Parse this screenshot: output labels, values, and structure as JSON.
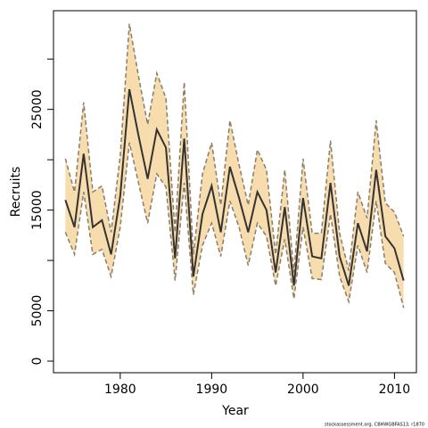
{
  "chart_data": {
    "type": "line-band",
    "x_label": "Year",
    "y_label": "Recruits",
    "footnote": "stockassessment.org, CBHWGBFAS13, r1870",
    "x": [
      1974,
      1975,
      1976,
      1977,
      1978,
      1979,
      1980,
      1981,
      1982,
      1983,
      1984,
      1985,
      1986,
      1987,
      1988,
      1989,
      1990,
      1991,
      1992,
      1993,
      1994,
      1995,
      1996,
      1997,
      1998,
      1999,
      2000,
      2001,
      2002,
      2003,
      2004,
      2005,
      2006,
      2007,
      2008,
      2009,
      2010,
      2011
    ],
    "values": [
      16000,
      13300,
      20600,
      13300,
      14000,
      10600,
      16400,
      27000,
      22400,
      18100,
      23000,
      21200,
      10200,
      22100,
      8400,
      14600,
      17400,
      12800,
      19300,
      16200,
      12800,
      16800,
      15000,
      8800,
      15300,
      7500,
      16200,
      10400,
      10200,
      17700,
      10400,
      7500,
      13700,
      10900,
      19000,
      12400,
      11200,
      8000
    ],
    "upper": [
      20100,
      16800,
      25700,
      16800,
      17400,
      12800,
      20400,
      33500,
      28300,
      23500,
      28600,
      26100,
      12800,
      27700,
      10600,
      18600,
      21700,
      15500,
      23900,
      19500,
      15500,
      21000,
      19000,
      10600,
      19000,
      8800,
      20100,
      12700,
      12700,
      21900,
      12700,
      9000,
      16800,
      14200,
      23900,
      15700,
      14800,
      12400
    ],
    "lower": [
      12800,
      10600,
      16800,
      10600,
      11100,
      8400,
      13300,
      21700,
      17700,
      13700,
      18600,
      17300,
      8000,
      17700,
      6600,
      11500,
      13700,
      10400,
      15900,
      13300,
      9500,
      13700,
      12400,
      7500,
      12100,
      6200,
      13300,
      8200,
      8100,
      14600,
      8400,
      5900,
      11500,
      8800,
      15900,
      9700,
      8800,
      5300
    ],
    "line_color": "#333333",
    "band_color": "#f7dcae",
    "band_edge_color": "#8a7d6b",
    "xlim": [
      1972.7,
      2012.4
    ],
    "ylim": [
      -1150,
      34800
    ],
    "xticks": [
      1980,
      1990,
      2000,
      2010
    ],
    "yticks": [
      0,
      5000,
      {
        "value": 10000,
        "label": null
      },
      15000,
      {
        "value": 20000,
        "label": null
      },
      25000,
      {
        "value": 30000,
        "label": null
      }
    ]
  }
}
